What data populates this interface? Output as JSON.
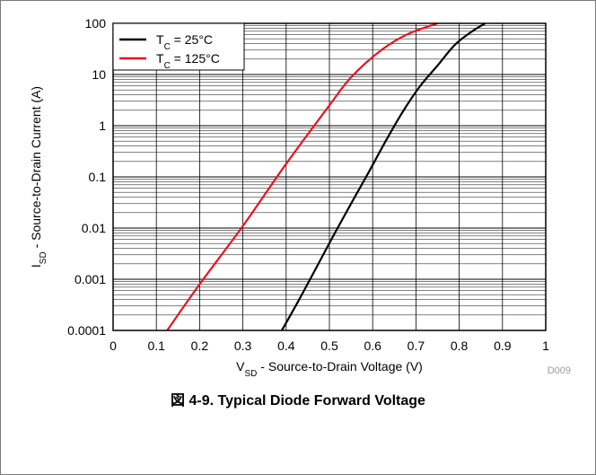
{
  "chart_data": {
    "type": "line",
    "xscale": "linear",
    "yscale": "log",
    "xlim": [
      0,
      1
    ],
    "ylim": [
      0.0001,
      100
    ],
    "grid": true,
    "xticks": [
      "0",
      "0.1",
      "0.2",
      "0.3",
      "0.4",
      "0.5",
      "0.6",
      "0.7",
      "0.8",
      "0.9",
      "1"
    ],
    "yticks": [
      "0.0001",
      "0.001",
      "0.01",
      "0.1",
      "1",
      "10",
      "100"
    ],
    "xlabel": {
      "main": "V",
      "sub": "SD",
      "rest": " - Source-to-Drain Voltage (V)"
    },
    "ylabel": {
      "main": "I",
      "sub": "SD",
      "rest": " - Source-to-Drain Current (A)"
    },
    "legend_position": "top-left",
    "series": [
      {
        "name": {
          "main": "T",
          "sub": "C",
          "rest": " = 25°C"
        },
        "color": "#000000",
        "x": [
          0.39,
          0.43,
          0.47,
          0.51,
          0.55,
          0.59,
          0.63,
          0.67,
          0.71,
          0.75,
          0.79,
          0.83,
          0.86
        ],
        "y": [
          0.0001,
          0.0004,
          0.0017,
          0.0073,
          0.03,
          0.12,
          0.5,
          1.9,
          6,
          15,
          38,
          70,
          100
        ]
      },
      {
        "name": {
          "main": "T",
          "sub": "C",
          "rest": " = 125°C"
        },
        "color": "#e8141e",
        "x": [
          0.125,
          0.2,
          0.3,
          0.4,
          0.5,
          0.55,
          0.62,
          0.68,
          0.75
        ],
        "y": [
          0.0001,
          0.0008,
          0.011,
          0.18,
          2.5,
          8.8,
          30,
          61,
          100
        ]
      }
    ]
  },
  "figure_code": "D009",
  "caption": "図 4-9. Typical Diode Forward Voltage"
}
